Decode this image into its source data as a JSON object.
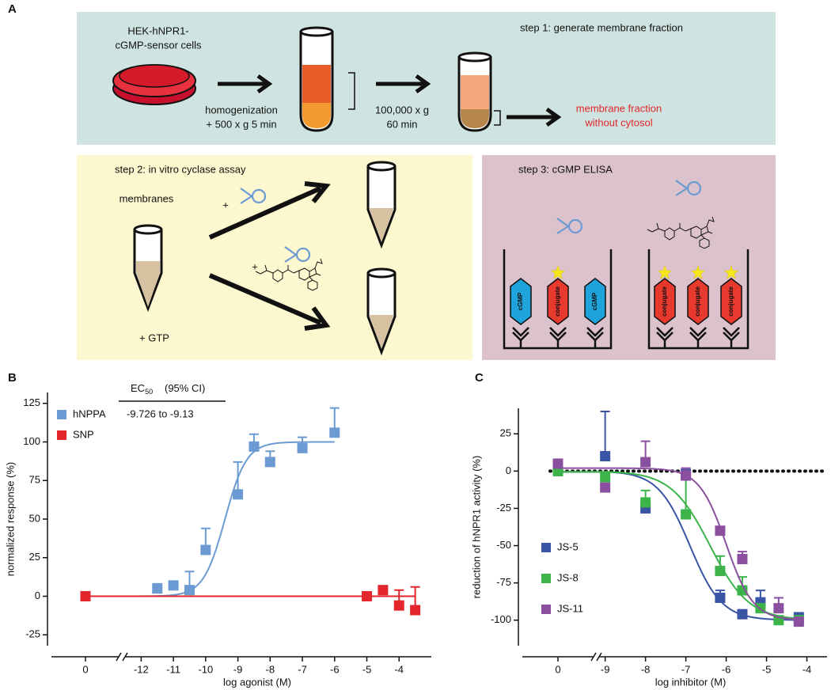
{
  "figure": {
    "panel_labels": [
      "A",
      "B",
      "C"
    ],
    "step1": {
      "title": "step 1: generate membrane fraction",
      "cells": [
        "HEK-hNPR1-",
        "cGMP-sensor cells"
      ],
      "spin1": [
        "homogenization",
        "+ 500 x g 5 min"
      ],
      "spin2": [
        "100,000 x g",
        "60 min"
      ],
      "result": [
        "membrane fraction",
        "without cytosol"
      ]
    },
    "step2": {
      "title": "step 2: in vitro cyclase assay",
      "membranes": "membranes",
      "plus": [
        "+",
        "+"
      ],
      "gtp": "+ GTP"
    },
    "step3": {
      "title": "step 3: cGMP ELISA",
      "well1": [
        "cGMP",
        "conjugate",
        "cGMP"
      ],
      "well2": [
        "conjugate",
        "conjugate",
        "conjugate"
      ]
    }
  },
  "chart_data": [
    {
      "type": "scatter",
      "ylabel": "normalized response (%)",
      "xlabel": "log agonist (M)",
      "axis_break": true,
      "xlim": [
        -12.5,
        -3
      ],
      "ylim": [
        -30,
        130
      ],
      "xticks": [
        0,
        -12,
        -11,
        -10,
        -9,
        -8,
        -7,
        -6,
        -5,
        -4
      ],
      "yticks": [
        -25,
        0,
        25,
        50,
        75,
        100,
        125
      ],
      "legend": "upper left",
      "zero_line": false,
      "ec50_table": {
        "header": "EC",
        "subscript": "50",
        "ci": "(95% CI)",
        "value": "-9.726 to -9.13"
      },
      "series": [
        {
          "name": "hNPPA",
          "color": "#6b9bd2",
          "x": [
            0,
            -11.5,
            -11,
            -10.5,
            -10,
            -9,
            -8.5,
            -8,
            -7,
            -6
          ],
          "values": [
            0,
            5,
            7,
            4,
            30,
            66,
            97,
            87,
            96,
            106
          ],
          "errors": [
            null,
            3,
            null,
            12,
            14,
            21,
            8,
            7,
            7,
            16
          ],
          "fit": {
            "start": 0,
            "end": 100,
            "mid": -9.4,
            "hill": 1.3
          }
        },
        {
          "name": "SNP",
          "color": "#e3262b",
          "x": [
            0,
            -5,
            -4.5,
            -4,
            -3.5
          ],
          "values": [
            0,
            0,
            4,
            -6,
            -9
          ],
          "errors": [
            null,
            null,
            null,
            10,
            15
          ],
          "fit": {
            "start": 0,
            "end": 0,
            "mid": -7,
            "hill": 1
          }
        }
      ]
    },
    {
      "type": "scatter",
      "ylabel": "reduction of hNPR1 activity (%)",
      "xlabel": "log inhibitor (M)",
      "axis_break": true,
      "xlim": [
        -9.15,
        -3.5
      ],
      "ylim": [
        -115,
        40
      ],
      "xticks": [
        0,
        -9,
        -8,
        -7,
        -6,
        -5,
        -4
      ],
      "yticks": [
        -100,
        -75,
        -50,
        -25,
        0,
        25
      ],
      "legend": "lower left",
      "zero_line": true,
      "series": [
        {
          "name": "JS-5",
          "color": "#3a55a4",
          "x": [
            0,
            -9,
            -8,
            -7,
            -6.15,
            -5.6,
            -5.15,
            -4.2
          ],
          "values": [
            0,
            10,
            -25,
            -2,
            -85,
            -96,
            -88,
            -98
          ],
          "errors": [
            null,
            30,
            null,
            null,
            5,
            null,
            8,
            null
          ],
          "fit": {
            "start": 0,
            "end": -100,
            "mid": -6.9,
            "hill": 1.1
          }
        },
        {
          "name": "JS-8",
          "color": "#3cb44a",
          "x": [
            0,
            -9,
            -8,
            -7,
            -6.15,
            -5.6,
            -5.15,
            -4.7,
            -4.2
          ],
          "values": [
            0,
            -4,
            -21,
            -29,
            -67,
            -80,
            -92,
            -100,
            -100
          ],
          "errors": [
            null,
            null,
            8,
            27,
            10,
            9,
            null,
            null,
            null
          ],
          "fit": {
            "start": 0,
            "end": -100,
            "mid": -6.4,
            "hill": 0.9
          }
        },
        {
          "name": "JS-11",
          "color": "#8b4fa0",
          "x": [
            0,
            -9,
            -8,
            -7,
            -6.15,
            -5.6,
            -4.7,
            -4.2
          ],
          "values": [
            5,
            -11,
            6,
            -3,
            -40,
            -59,
            -92,
            -101
          ],
          "errors": [
            null,
            null,
            14,
            5,
            null,
            5,
            7,
            null
          ],
          "fit": {
            "start": 2,
            "end": -100,
            "mid": -6.0,
            "hill": 1.3
          }
        }
      ]
    }
  ]
}
